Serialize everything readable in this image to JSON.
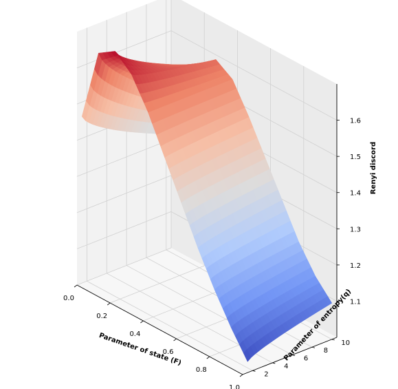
{
  "chart_data": {
    "type": "surface",
    "title": "",
    "xlabel": "Parameter of state (F)",
    "ylabel": "Parameter of entropy(q)",
    "zlabel": "Renyi discord",
    "xlim": [
      0.0,
      1.0
    ],
    "ylim": [
      1.0,
      10.5
    ],
    "zlim": [
      1.0,
      1.7
    ],
    "x_ticks": [
      "0.0",
      "0.2",
      "0.4",
      "0.6",
      "0.8",
      "1.0"
    ],
    "y_ticks": [
      "2",
      "4",
      "6",
      "8",
      "10"
    ],
    "z_ticks": [
      "1.1",
      "1.2",
      "1.3",
      "1.4",
      "1.5",
      "1.6"
    ],
    "grid": true,
    "colormap": "coolwarm",
    "colormap_colors": [
      "#3b4cc0",
      "#7396f5",
      "#b0cbfc",
      "#dddcdc",
      "#f6bfa6",
      "#ee8468",
      "#b40426"
    ],
    "surface_profile": {
      "F": [
        0.0,
        0.1,
        0.2,
        0.3,
        0.4,
        0.5,
        0.6,
        0.7,
        0.8,
        0.9,
        1.0
      ],
      "discord_at_q_min": [
        1.46,
        1.66,
        1.69,
        1.65,
        1.57,
        1.47,
        1.37,
        1.27,
        1.18,
        1.1,
        1.03
      ],
      "discord_at_q_max": [
        1.32,
        1.45,
        1.56,
        1.6,
        1.57,
        1.49,
        1.4,
        1.31,
        1.22,
        1.15,
        1.1
      ]
    }
  }
}
